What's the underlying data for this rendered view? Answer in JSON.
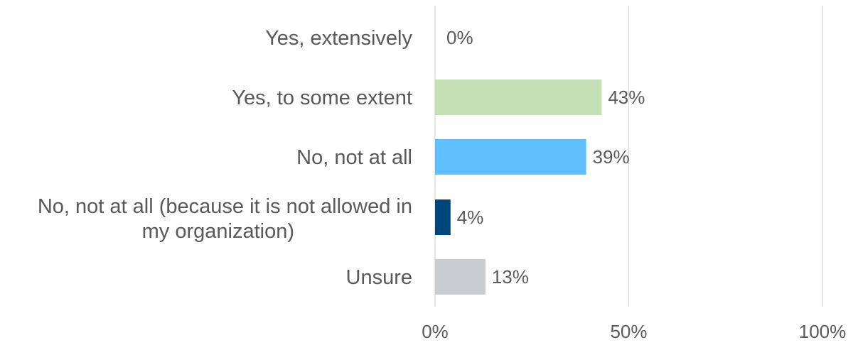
{
  "chart_data": {
    "type": "bar",
    "orientation": "horizontal",
    "categories": [
      "Yes, extensively",
      "Yes, to some extent",
      "No, not at all",
      "No, not at all (because it is not allowed in my organization)",
      "Unsure"
    ],
    "values": [
      0,
      43,
      39,
      4,
      13
    ],
    "data_labels": [
      "0%",
      "43%",
      "39%",
      "4%",
      "13%"
    ],
    "bar_colors": [
      "#c5e0b4",
      "#c5e0b4",
      "#5fbfff",
      "#00467a",
      "#c8cdd0"
    ],
    "xlim": [
      0,
      100
    ],
    "x_ticks": [
      0,
      50,
      100
    ],
    "x_tick_labels": [
      "0%",
      "50%",
      "100%"
    ],
    "grid": true,
    "grid_color": "#d9d9d9",
    "text_color": "#595959",
    "title": "",
    "xlabel": "",
    "ylabel": ""
  }
}
